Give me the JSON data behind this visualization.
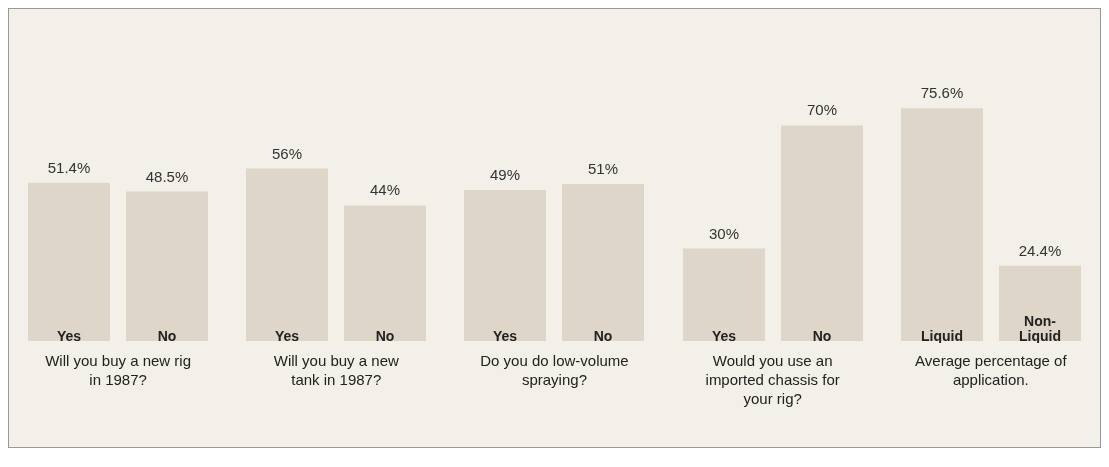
{
  "chart_data": [
    {
      "type": "bar",
      "categories": [
        "Yes",
        "No"
      ],
      "values": [
        51.4,
        48.5
      ],
      "color": "#ddd6c9",
      "data_labels": true,
      "value_labels": [
        "51.4%",
        "48.5%"
      ],
      "xlabel": "Will you buy a new rig in 1987?"
    },
    {
      "type": "bar",
      "categories": [
        "Yes",
        "No"
      ],
      "values": [
        56,
        44
      ],
      "color": "#ddd6c9",
      "data_labels": true,
      "value_labels": [
        "56%",
        "44%"
      ],
      "xlabel": "Will you buy a new tank in 1987?"
    },
    {
      "type": "bar",
      "categories": [
        "Yes",
        "No"
      ],
      "values": [
        49,
        51
      ],
      "color": "#ddd6c9",
      "data_labels": true,
      "value_labels": [
        "49%",
        "51%"
      ],
      "xlabel": "Do you do low-volume spraying?"
    },
    {
      "type": "bar",
      "categories": [
        "Yes",
        "No"
      ],
      "values": [
        30,
        70
      ],
      "color": "#ddd6c9",
      "data_labels": true,
      "value_labels": [
        "30%",
        "70%"
      ],
      "xlabel": "Would you use an imported chassis for your rig?"
    },
    {
      "type": "bar",
      "categories": [
        "Liquid",
        "Non-Liquid"
      ],
      "values": [
        75.6,
        24.4
      ],
      "color": "#ddd6c9",
      "data_labels": true,
      "value_labels": [
        "75.6%",
        "24.4%"
      ],
      "xlabel": "Average percentage of application."
    }
  ]
}
